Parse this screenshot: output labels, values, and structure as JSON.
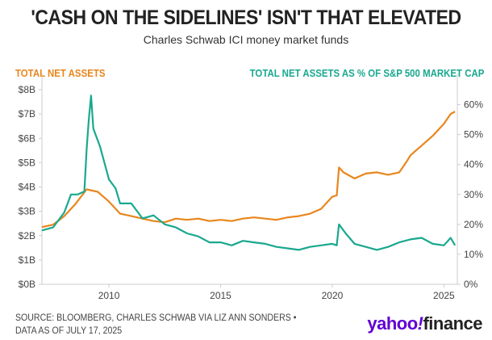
{
  "chart_data": {
    "type": "line",
    "title": "'CASH ON THE SIDELINES' ISN'T THAT ELEVATED",
    "subtitle": "Charles Schwab ICI money market funds",
    "xlim": [
      2007,
      2025.6
    ],
    "x_ticks": [
      2010,
      2015,
      2020,
      2025
    ],
    "y_left": {
      "label": "TOTAL NET ASSETS",
      "range": [
        0,
        8
      ],
      "ticks": [
        "$0B",
        "$1B",
        "$2B",
        "$3B",
        "$4B",
        "$5B",
        "$6B",
        "$7B",
        "$8B"
      ]
    },
    "y_right": {
      "label": "TOTAL NET ASSETS AS % OF S&P 500 MARKET CAP",
      "range": [
        0,
        65
      ],
      "ticks": [
        "0%",
        "10%",
        "20%",
        "30%",
        "40%",
        "50%",
        "60%"
      ]
    },
    "grid": false,
    "series": [
      {
        "name": "TOTAL NET ASSETS",
        "axis": "left",
        "color": "#e8861c",
        "x": [
          2007,
          2007.5,
          2008,
          2008.5,
          2009,
          2009.5,
          2010,
          2010.5,
          2011,
          2011.5,
          2012,
          2012.5,
          2013,
          2013.5,
          2014,
          2014.5,
          2015,
          2015.5,
          2016,
          2016.5,
          2017,
          2017.5,
          2018,
          2018.5,
          2019,
          2019.5,
          2020,
          2020.2,
          2020.3,
          2020.5,
          2021,
          2021.5,
          2022,
          2022.5,
          2023,
          2023.3,
          2023.5,
          2024,
          2024.5,
          2025,
          2025.3,
          2025.5
        ],
        "y": [
          2.35,
          2.45,
          2.8,
          3.3,
          3.9,
          3.8,
          3.4,
          2.9,
          2.8,
          2.7,
          2.6,
          2.55,
          2.7,
          2.65,
          2.7,
          2.6,
          2.65,
          2.6,
          2.7,
          2.75,
          2.7,
          2.65,
          2.75,
          2.8,
          2.9,
          3.1,
          3.6,
          3.65,
          4.8,
          4.6,
          4.35,
          4.55,
          4.6,
          4.5,
          4.6,
          5.0,
          5.3,
          5.7,
          6.1,
          6.6,
          7.0,
          7.1
        ]
      },
      {
        "name": "TOTAL NET ASSETS AS % OF S&P 500 MARKET CAP",
        "axis": "right",
        "color": "#1aa88f",
        "x": [
          2007,
          2007.5,
          2008,
          2008.3,
          2008.6,
          2008.9,
          2009,
          2009.1,
          2009.2,
          2009.3,
          2009.6,
          2010,
          2010.3,
          2010.5,
          2011,
          2011.5,
          2012,
          2012.5,
          2013,
          2013.5,
          2014,
          2014.5,
          2015,
          2015.5,
          2016,
          2016.5,
          2017,
          2017.5,
          2018,
          2018.5,
          2019,
          2019.5,
          2020,
          2020.2,
          2020.3,
          2020.6,
          2021,
          2021.5,
          2022,
          2022.5,
          2023,
          2023.5,
          2024,
          2024.5,
          2025,
          2025.3,
          2025.5
        ],
        "y": [
          18,
          19,
          24,
          30,
          30,
          31,
          45,
          55,
          63,
          52,
          46,
          35,
          32,
          27,
          27,
          22,
          23,
          20,
          19,
          17,
          16,
          14,
          14,
          13,
          14.5,
          14,
          13.5,
          12.5,
          12,
          11.5,
          12.5,
          13,
          13.5,
          13,
          20,
          17,
          13.5,
          12.5,
          11.5,
          12.5,
          14,
          15,
          15.5,
          13.5,
          13,
          15.5,
          13
        ]
      }
    ]
  },
  "source": {
    "line1": "SOURCE: BLOOMBERG, CHARLES SCHWAB VIA LIZ ANN SONDERS •",
    "line2": "DATA AS OF JULY 17, 2025"
  },
  "logo": "yahoo!finance"
}
